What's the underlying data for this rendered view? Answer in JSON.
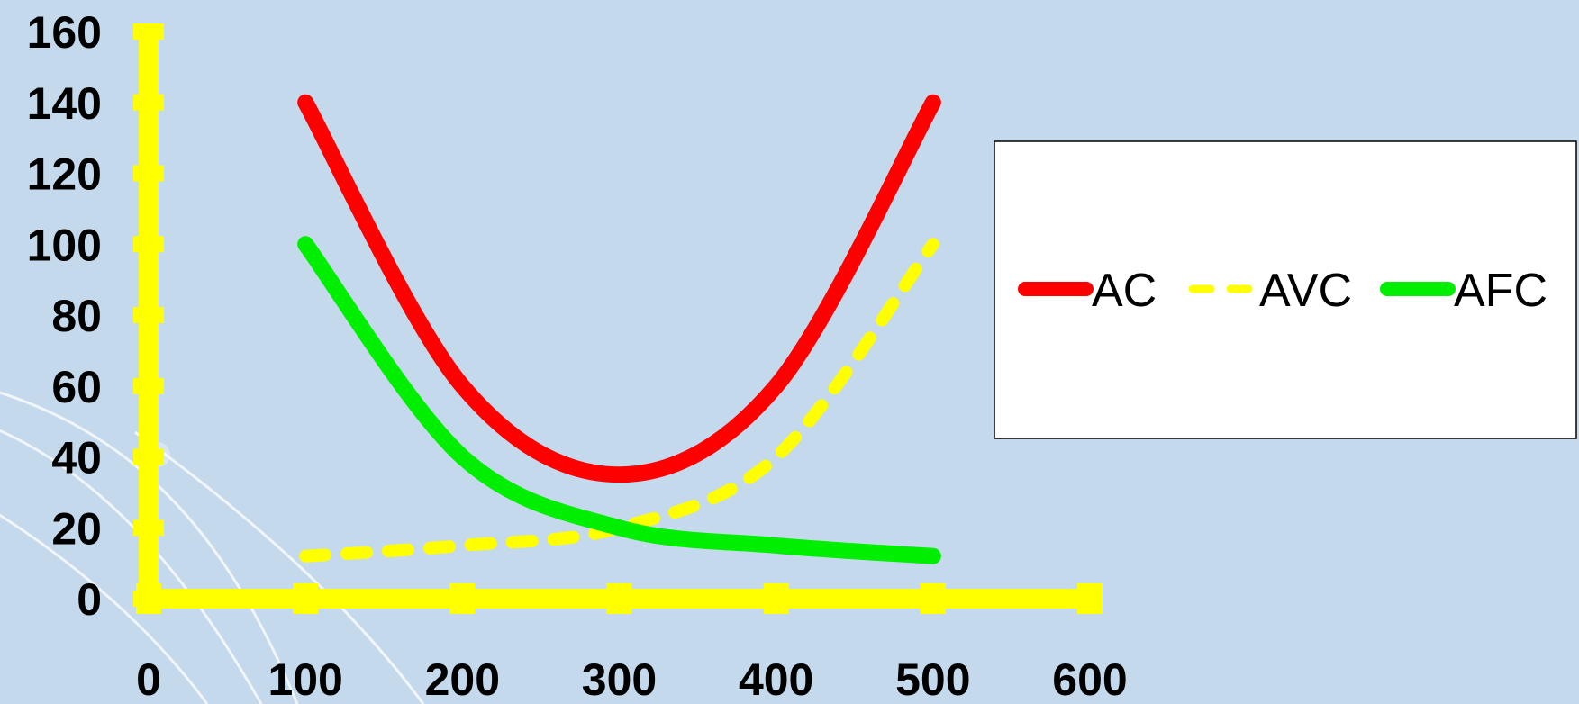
{
  "chart_data": {
    "type": "line",
    "title": "",
    "xlabel": "",
    "ylabel": "",
    "xlim": [
      0,
      600
    ],
    "ylim": [
      0,
      160
    ],
    "x_ticks": [
      "0",
      "100",
      "200",
      "300",
      "400",
      "500",
      "600"
    ],
    "y_ticks": [
      "0",
      "20",
      "40",
      "60",
      "80",
      "100",
      "120",
      "140",
      "160"
    ],
    "grid": false,
    "legend_position": "right",
    "axis_color": "#ffff00",
    "series": [
      {
        "name": "AC",
        "color": "#ff0000",
        "style": "solid",
        "x": [
          100,
          200,
          300,
          400,
          500
        ],
        "y": [
          140,
          60,
          35,
          60,
          140
        ]
      },
      {
        "name": "AVC",
        "color": "#ffff00",
        "style": "dashed",
        "x": [
          100,
          200,
          300,
          400,
          500
        ],
        "y": [
          12,
          15,
          20,
          40,
          100
        ]
      },
      {
        "name": "AFC",
        "color": "#00ee00",
        "style": "solid",
        "x": [
          100,
          200,
          300,
          400,
          500
        ],
        "y": [
          100,
          40,
          20,
          15,
          12
        ]
      }
    ]
  }
}
